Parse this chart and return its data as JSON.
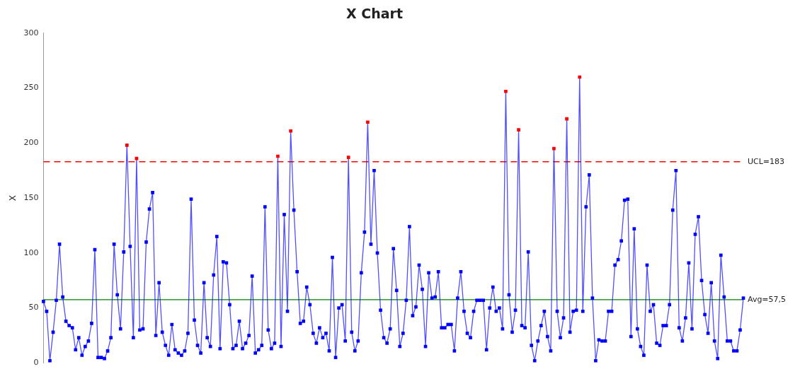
{
  "chart_data": {
    "type": "line",
    "title": "X Chart",
    "ylabel": "X",
    "categories": [
      null,
      null,
      null,
      null,
      null,
      null,
      null,
      null,
      null,
      null,
      null,
      null,
      null,
      null,
      null,
      null,
      null,
      null,
      null,
      null,
      null,
      null,
      null,
      null,
      null,
      null,
      null,
      null,
      null,
      null,
      null,
      null,
      null,
      null,
      null,
      null,
      null,
      null,
      null,
      null,
      null,
      null,
      null,
      null,
      null,
      null,
      null,
      null,
      null,
      null,
      null,
      null,
      null,
      null,
      null,
      null,
      null,
      null,
      null,
      null,
      null,
      null,
      null,
      null,
      null,
      null,
      null,
      null,
      null,
      null,
      null,
      null,
      null,
      null,
      null,
      null,
      null,
      null,
      null,
      null,
      null,
      null,
      null,
      null,
      null,
      null,
      null,
      null,
      null,
      null,
      null,
      null,
      null,
      null,
      null,
      null,
      null,
      null,
      null,
      null,
      null,
      null,
      null,
      null,
      null,
      null,
      null,
      null,
      null,
      null,
      null,
      null,
      null,
      null,
      null,
      null,
      null,
      null,
      null,
      null,
      null,
      null,
      null,
      null,
      null,
      null,
      null,
      null,
      null,
      null,
      null,
      null,
      null,
      null,
      null,
      null,
      null,
      null,
      null,
      null,
      null,
      null,
      null,
      null,
      null,
      null,
      null,
      null,
      null,
      null,
      null,
      null,
      null,
      null,
      null,
      null,
      null,
      null,
      null,
      null,
      null,
      null,
      null,
      null,
      null,
      null,
      null,
      null,
      null,
      null,
      null,
      null,
      null,
      null,
      null,
      null,
      null,
      null,
      null,
      null,
      null,
      null,
      null,
      null,
      null,
      null,
      null,
      null,
      null,
      null,
      null,
      null,
      null,
      null,
      null,
      null,
      null,
      null,
      null,
      null,
      null,
      null,
      null,
      null,
      null,
      null,
      null,
      null,
      null,
      null,
      null,
      null,
      null,
      null,
      null,
      null,
      null,
      null,
      null
    ],
    "series": [
      {
        "color": "#0000ff",
        "values": [
          56,
          47,
          2,
          28,
          57,
          108,
          60,
          38,
          34,
          32,
          12,
          23,
          7,
          15,
          20,
          36,
          103,
          5,
          5,
          4,
          11,
          23,
          108,
          62,
          31,
          101,
          198,
          106,
          23,
          186,
          30,
          31,
          110,
          140,
          155,
          25,
          73,
          28,
          16,
          7,
          35,
          12,
          9,
          7,
          11,
          27,
          149,
          39,
          16,
          9,
          73,
          23,
          15,
          80,
          115,
          13,
          92,
          91,
          53,
          13,
          16,
          38,
          13,
          18,
          25,
          79,
          9,
          12,
          16,
          142,
          30,
          13,
          18,
          188,
          15,
          135,
          47,
          211,
          139,
          83,
          36,
          38,
          69,
          53,
          27,
          18,
          32,
          23,
          27,
          11,
          96,
          5,
          50,
          53,
          20,
          187,
          28,
          11,
          20,
          82,
          119,
          219,
          108,
          175,
          100,
          48,
          23,
          18,
          31,
          104,
          66,
          15,
          27,
          57,
          124,
          43,
          51,
          89,
          67,
          15,
          82,
          59,
          60,
          83,
          32,
          32,
          35,
          35,
          11,
          59,
          83,
          47,
          27,
          23,
          47,
          57,
          57,
          57,
          12,
          50,
          69,
          47,
          50,
          31,
          247,
          62,
          28,
          48,
          212,
          34,
          32,
          101,
          16,
          2,
          20,
          34,
          47,
          24,
          11,
          195,
          47,
          23,
          41,
          222,
          28,
          47,
          48,
          260,
          47,
          142,
          171,
          59,
          2,
          21,
          20,
          20,
          47,
          47,
          89,
          94,
          111,
          148,
          149,
          24,
          122,
          31,
          15,
          7,
          89,
          47,
          53,
          18,
          16,
          34,
          34,
          53,
          139,
          175,
          32,
          20,
          41,
          91,
          31,
          117,
          133,
          75,
          44,
          27,
          73,
          20,
          4,
          98,
          60,
          20,
          20,
          11,
          11,
          30,
          59
        ],
        "colors": [
          "#0000ff",
          "#0000ff",
          "#0000ff",
          "#0000ff",
          "#0000ff",
          "#0000ff",
          "#0000ff",
          "#0000ff",
          "#0000ff",
          "#0000ff",
          "#0000ff",
          "#0000ff",
          "#0000ff",
          "#0000ff",
          "#0000ff",
          "#0000ff",
          "#0000ff",
          "#0000ff",
          "#0000ff",
          "#0000ff",
          "#0000ff",
          "#0000ff",
          "#0000ff",
          "#0000ff",
          "#0000ff",
          "#0000ff",
          "#ff0000",
          "#0000ff",
          "#0000ff",
          "#ff0000",
          "#0000ff",
          "#0000ff",
          "#0000ff",
          "#0000ff",
          "#0000ff",
          "#0000ff",
          "#0000ff",
          "#0000ff",
          "#0000ff",
          "#0000ff",
          "#0000ff",
          "#0000ff",
          "#0000ff",
          "#0000ff",
          "#0000ff",
          "#0000ff",
          "#0000ff",
          "#0000ff",
          "#0000ff",
          "#0000ff",
          "#0000ff",
          "#0000ff",
          "#0000ff",
          "#0000ff",
          "#0000ff",
          "#0000ff",
          "#0000ff",
          "#0000ff",
          "#0000ff",
          "#0000ff",
          "#0000ff",
          "#0000ff",
          "#0000ff",
          "#0000ff",
          "#0000ff",
          "#0000ff",
          "#0000ff",
          "#0000ff",
          "#0000ff",
          "#0000ff",
          "#0000ff",
          "#0000ff",
          "#0000ff",
          "#ff0000",
          "#0000ff",
          "#0000ff",
          "#0000ff",
          "#ff0000",
          "#0000ff",
          "#0000ff",
          "#0000ff",
          "#0000ff",
          "#0000ff",
          "#0000ff",
          "#0000ff",
          "#0000ff",
          "#0000ff",
          "#0000ff",
          "#0000ff",
          "#0000ff",
          "#0000ff",
          "#0000ff",
          "#0000ff",
          "#0000ff",
          "#0000ff",
          "#ff0000",
          "#0000ff",
          "#0000ff",
          "#0000ff",
          "#0000ff",
          "#0000ff",
          "#ff0000",
          "#0000ff",
          "#0000ff",
          "#0000ff",
          "#0000ff",
          "#0000ff",
          "#0000ff",
          "#0000ff",
          "#0000ff",
          "#0000ff",
          "#0000ff",
          "#0000ff",
          "#0000ff",
          "#0000ff",
          "#0000ff",
          "#0000ff",
          "#0000ff",
          "#0000ff",
          "#0000ff",
          "#0000ff",
          "#0000ff",
          "#0000ff",
          "#0000ff",
          "#0000ff",
          "#0000ff",
          "#0000ff",
          "#0000ff",
          "#0000ff",
          "#0000ff",
          "#0000ff",
          "#0000ff",
          "#0000ff",
          "#0000ff",
          "#0000ff",
          "#0000ff",
          "#0000ff",
          "#0000ff",
          "#0000ff",
          "#0000ff",
          "#0000ff",
          "#0000ff",
          "#0000ff",
          "#0000ff",
          "#ff0000",
          "#0000ff",
          "#0000ff",
          "#0000ff",
          "#ff0000",
          "#0000ff",
          "#0000ff",
          "#0000ff",
          "#0000ff",
          "#0000ff",
          "#0000ff",
          "#0000ff",
          "#0000ff",
          "#0000ff",
          "#0000ff",
          "#ff0000",
          "#0000ff",
          "#0000ff",
          "#0000ff",
          "#ff0000",
          "#0000ff",
          "#0000ff",
          "#0000ff",
          "#ff0000",
          "#0000ff",
          "#0000ff",
          "#0000ff",
          "#0000ff",
          "#0000ff",
          "#0000ff",
          "#0000ff",
          "#0000ff",
          "#0000ff",
          "#0000ff",
          "#0000ff",
          "#0000ff",
          "#0000ff",
          "#0000ff",
          "#0000ff",
          "#0000ff",
          "#0000ff",
          "#0000ff",
          "#0000ff",
          "#0000ff",
          "#0000ff",
          "#0000ff",
          "#0000ff",
          "#0000ff",
          "#0000ff",
          "#0000ff",
          "#0000ff",
          "#0000ff",
          "#0000ff",
          "#0000ff",
          "#0000ff",
          "#0000ff",
          "#0000ff",
          "#0000ff",
          "#0000ff",
          "#0000ff",
          "#0000ff",
          "#0000ff",
          "#0000ff",
          "#0000ff",
          "#0000ff",
          "#0000ff",
          "#0000ff",
          "#0000ff",
          "#0000ff",
          "#0000ff",
          "#0000ff",
          "#0000ff",
          "#0000ff",
          "#0000ff",
          "#0000ff"
        ]
      }
    ],
    "ylim": [
      0,
      300
    ],
    "yticks": [
      0,
      50,
      100,
      150,
      200,
      250,
      300
    ],
    "ref_lines": [
      {
        "axis": "y",
        "value": 183,
        "label": "UCL=183",
        "color": "#ff0000",
        "line_style": "dashed"
      },
      {
        "axis": "y",
        "value": 57.5,
        "label": "Avg=57,5",
        "color": "#008000",
        "line_style": "solid"
      }
    ],
    "grid": false,
    "legend": false,
    "marker": "square",
    "tick_labels": "y"
  }
}
